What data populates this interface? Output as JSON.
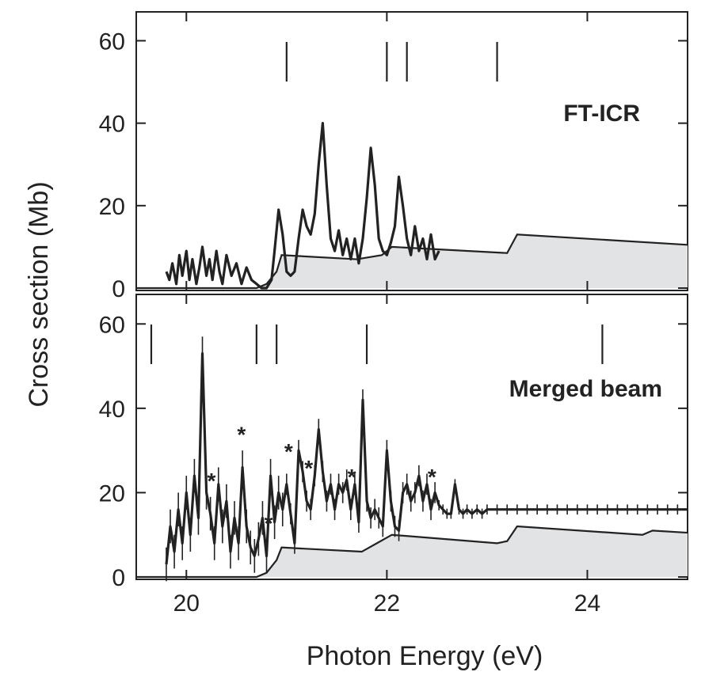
{
  "chart_data": [
    {
      "type": "line",
      "panel": "top",
      "label": "FT-ICR",
      "ylabel": "Cross section (Mb)",
      "xlim": [
        19.5,
        25.0
      ],
      "ylim": [
        0,
        67
      ],
      "y_ticks": [
        0,
        20,
        40,
        60
      ],
      "x_ticks": [
        20,
        22,
        24
      ],
      "grid": false,
      "markers_x": [
        21.0,
        22.0,
        22.2,
        23.1
      ],
      "series": [
        {
          "kind": "measured",
          "x": [
            19.8,
            19.83,
            19.86,
            19.9,
            19.93,
            19.96,
            20.0,
            20.03,
            20.06,
            20.1,
            20.13,
            20.16,
            20.2,
            20.23,
            20.26,
            20.3,
            20.33,
            20.36,
            20.4,
            20.45,
            20.5,
            20.55,
            20.6,
            20.65,
            20.7,
            20.75,
            20.8,
            20.85,
            20.88,
            20.92,
            20.96,
            21.0,
            21.04,
            21.08,
            21.12,
            21.16,
            21.2,
            21.24,
            21.28,
            21.32,
            21.36,
            21.4,
            21.44,
            21.48,
            21.52,
            21.56,
            21.6,
            21.64,
            21.68,
            21.72,
            21.76,
            21.8,
            21.84,
            21.88,
            21.92,
            21.96,
            22.0,
            22.04,
            22.08,
            22.12,
            22.16,
            22.2,
            22.24,
            22.28,
            22.32,
            22.36,
            22.4,
            22.44,
            22.48,
            22.52
          ],
          "y": [
            4,
            2,
            6,
            1,
            8,
            3,
            9,
            2,
            7,
            1,
            5,
            10,
            3,
            7,
            2,
            9,
            4,
            1,
            8,
            3,
            6,
            1,
            5,
            2,
            1,
            0,
            0,
            2,
            9,
            19,
            13,
            4,
            3,
            4,
            12,
            19,
            15,
            13,
            18,
            30,
            40,
            25,
            12,
            9,
            14,
            8,
            12,
            7,
            12,
            6,
            12,
            22,
            34,
            25,
            12,
            9,
            8,
            11,
            15,
            27,
            20,
            12,
            8,
            15,
            9,
            12,
            7,
            13,
            7,
            9
          ]
        },
        {
          "kind": "background",
          "x": [
            19.5,
            20.7,
            20.8,
            20.9,
            20.95,
            21.7,
            21.95,
            22.05,
            23.2,
            23.3,
            25.0
          ],
          "y": [
            0,
            0,
            1,
            4,
            8,
            7,
            8,
            10,
            8.5,
            13,
            10.5
          ]
        }
      ]
    },
    {
      "type": "line",
      "panel": "bottom",
      "label": "Merged beam",
      "ylabel": "Cross section (Mb)",
      "xlabel": "Photon Energy (eV)",
      "xlim": [
        19.5,
        25.0
      ],
      "ylim": [
        0,
        67
      ],
      "y_ticks": [
        0,
        20,
        40,
        60
      ],
      "x_ticks": [
        20,
        22,
        24
      ],
      "x_tick_labels": [
        "20",
        "22",
        "24"
      ],
      "grid": false,
      "markers_x": [
        19.65,
        20.7,
        20.9,
        21.8,
        24.15
      ],
      "star_marks_x": [
        20.25,
        20.55,
        20.82,
        21.02,
        21.22,
        21.65,
        22.45
      ],
      "star_mark_label": "*",
      "series": [
        {
          "kind": "measured",
          "x": [
            19.8,
            19.84,
            19.88,
            19.92,
            19.96,
            20.0,
            20.04,
            20.08,
            20.12,
            20.16,
            20.2,
            20.24,
            20.28,
            20.32,
            20.36,
            20.4,
            20.44,
            20.48,
            20.52,
            20.56,
            20.6,
            20.64,
            20.68,
            20.72,
            20.76,
            20.8,
            20.84,
            20.88,
            20.92,
            20.96,
            21.0,
            21.04,
            21.08,
            21.12,
            21.16,
            21.2,
            21.24,
            21.28,
            21.32,
            21.36,
            21.4,
            21.44,
            21.48,
            21.52,
            21.56,
            21.6,
            21.64,
            21.68,
            21.72,
            21.76,
            21.8,
            21.84,
            21.88,
            21.92,
            21.96,
            22.0,
            22.04,
            22.08,
            22.12,
            22.16,
            22.2,
            22.24,
            22.28,
            22.32,
            22.36,
            22.4,
            22.44,
            22.48,
            22.52,
            22.56,
            22.6,
            22.64,
            22.68,
            22.72,
            22.76,
            22.8,
            22.85,
            22.9,
            22.95,
            23.0,
            23.1,
            23.2,
            23.3,
            23.4,
            23.5,
            23.6,
            23.7,
            23.8,
            23.9,
            24.0,
            24.1,
            24.2,
            24.3,
            24.4,
            24.5,
            24.6,
            24.7,
            24.8,
            24.9,
            25.0
          ],
          "y": [
            3,
            12,
            6,
            16,
            8,
            20,
            10,
            24,
            14,
            53,
            20,
            15,
            8,
            22,
            12,
            18,
            6,
            14,
            8,
            26,
            12,
            7,
            5,
            9,
            14,
            5,
            24,
            13,
            20,
            16,
            22,
            15,
            8,
            30,
            25,
            18,
            16,
            24,
            35,
            25,
            18,
            22,
            16,
            22,
            20,
            23,
            16,
            22,
            13,
            42,
            18,
            14,
            16,
            14,
            12,
            30,
            18,
            12,
            11,
            20,
            22,
            18,
            20,
            24,
            18,
            22,
            16,
            20,
            17,
            16,
            15,
            15,
            22,
            16,
            15,
            16,
            15,
            16,
            15,
            16,
            16,
            16,
            16,
            16,
            16,
            16,
            16,
            16,
            16,
            16,
            16,
            16,
            16,
            16,
            16,
            16,
            16,
            16,
            16,
            16
          ]
        },
        {
          "kind": "background",
          "x": [
            19.5,
            20.7,
            20.8,
            20.9,
            20.95,
            21.75,
            21.9,
            22.05,
            23.1,
            23.2,
            23.3,
            24.55,
            24.65,
            25.0
          ],
          "y": [
            0,
            0,
            1,
            4,
            7,
            6,
            8,
            10,
            8,
            8.5,
            12,
            10,
            11,
            10.5
          ]
        }
      ]
    }
  ]
}
